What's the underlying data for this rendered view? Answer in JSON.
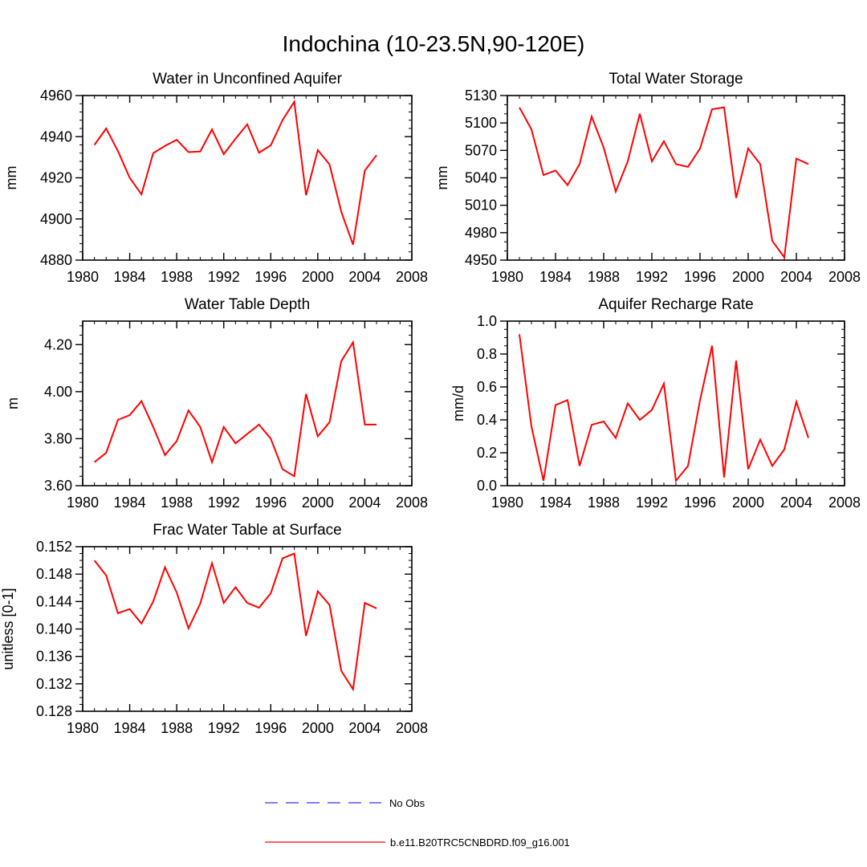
{
  "figure_title": "Indochina (10-23.5N,90-120E)",
  "colors": {
    "model_line": "#ff0000",
    "obs_line": "#0000ff",
    "axis": "#000000"
  },
  "legend": [
    {
      "label": "No Obs",
      "style": "dashed",
      "color": "#0000ff"
    },
    {
      "label": "b.e11.B20TRC5CNBDRD.f09_g16.001",
      "style": "solid",
      "color": "#ff0000"
    }
  ],
  "chart_data": [
    {
      "type": "line",
      "title": "Water in Unconfined Aquifer",
      "xlabel": "",
      "ylabel": "mm",
      "xlim": [
        1980,
        2008
      ],
      "ylim": [
        4880,
        4960
      ],
      "xticks": [
        1980,
        1984,
        1988,
        1992,
        1996,
        2000,
        2004,
        2008
      ],
      "yticks": [
        4880,
        4900,
        4920,
        4940,
        4960
      ],
      "ytick_labels": [
        "4880",
        "4900",
        "4920",
        "4940",
        "4960"
      ],
      "yminor_step": 4,
      "x": [
        1981,
        1982,
        1983,
        1984,
        1985,
        1986,
        1987,
        1988,
        1989,
        1990,
        1991,
        1992,
        1993,
        1994,
        1995,
        1996,
        1997,
        1998,
        1999,
        2000,
        2001,
        2002,
        2003,
        2004,
        2005
      ],
      "series": [
        {
          "name": "b.e11.B20TRC5CNBDRD.f09_g16.001",
          "values": [
            4936,
            4944,
            4933,
            4920,
            4912,
            4932,
            4935.5,
            4938.5,
            4932.5,
            4932.8,
            4943.5,
            4931.5,
            4939,
            4946,
            4932.2,
            4935.8,
            4948,
            4957,
            4911.5,
            4933.5,
            4926.5,
            4903.5,
            4887.5,
            4923.5,
            4931
          ]
        }
      ]
    },
    {
      "type": "line",
      "title": "Total Water Storage",
      "xlabel": "",
      "ylabel": "mm",
      "xlim": [
        1980,
        2008
      ],
      "ylim": [
        4950,
        5130
      ],
      "xticks": [
        1980,
        1984,
        1988,
        1992,
        1996,
        2000,
        2004,
        2008
      ],
      "yticks": [
        4950,
        4980,
        5010,
        5040,
        5070,
        5100,
        5130
      ],
      "ytick_labels": [
        "4950",
        "4980",
        "5010",
        "5040",
        "5070",
        "5100",
        "5130"
      ],
      "yminor_step": 10,
      "x": [
        1981,
        1982,
        1983,
        1984,
        1985,
        1986,
        1987,
        1988,
        1989,
        1990,
        1991,
        1992,
        1993,
        1994,
        1995,
        1996,
        1997,
        1998,
        1999,
        2000,
        2001,
        2002,
        2003,
        2004,
        2005
      ],
      "series": [
        {
          "name": "b.e11.B20TRC5CNBDRD.f09_g16.001",
          "values": [
            5117,
            5093,
            5043,
            5048,
            5032,
            5055,
            5107,
            5073,
            5025,
            5058,
            5110,
            5058,
            5080,
            5055,
            5052,
            5072,
            5115,
            5117,
            5018,
            5072,
            5055,
            4971,
            4953,
            5061,
            5055
          ]
        }
      ]
    },
    {
      "type": "line",
      "title": "Water Table Depth",
      "xlabel": "",
      "ylabel": "m",
      "xlim": [
        1980,
        2008
      ],
      "ylim": [
        3.6,
        4.3
      ],
      "xticks": [
        1980,
        1984,
        1988,
        1992,
        1996,
        2000,
        2004,
        2008
      ],
      "yticks": [
        3.6,
        3.8,
        4.0,
        4.2
      ],
      "ytick_labels": [
        "3.60",
        "3.80",
        "4.00",
        "4.20"
      ],
      "yminor_step": 0.04,
      "x": [
        1981,
        1982,
        1983,
        1984,
        1985,
        1986,
        1987,
        1988,
        1989,
        1990,
        1991,
        1992,
        1993,
        1994,
        1995,
        1996,
        1997,
        1998,
        1999,
        2000,
        2001,
        2002,
        2003,
        2004,
        2005
      ],
      "series": [
        {
          "name": "b.e11.B20TRC5CNBDRD.f09_g16.001",
          "values": [
            3.7,
            3.74,
            3.88,
            3.9,
            3.96,
            3.85,
            3.73,
            3.79,
            3.92,
            3.85,
            3.7,
            3.85,
            3.78,
            3.82,
            3.86,
            3.8,
            3.67,
            3.64,
            3.99,
            3.81,
            3.87,
            4.13,
            4.21,
            3.86,
            3.86
          ]
        }
      ]
    },
    {
      "type": "line",
      "title": "Aquifer Recharge Rate",
      "xlabel": "",
      "ylabel": "mm/d",
      "xlim": [
        1980,
        2008
      ],
      "ylim": [
        0,
        1.0
      ],
      "xticks": [
        1980,
        1984,
        1988,
        1992,
        1996,
        2000,
        2004,
        2008
      ],
      "yticks": [
        0,
        0.2,
        0.4,
        0.6,
        0.8,
        1.0
      ],
      "ytick_labels": [
        "0.0",
        "0.2",
        "0.4",
        "0.6",
        "0.8",
        "1.0"
      ],
      "yminor_step": 0.05,
      "x": [
        1981,
        1982,
        1983,
        1984,
        1985,
        1986,
        1987,
        1988,
        1989,
        1990,
        1991,
        1992,
        1993,
        1994,
        1995,
        1996,
        1997,
        1998,
        1999,
        2000,
        2001,
        2002,
        2003,
        2004,
        2005
      ],
      "series": [
        {
          "name": "b.e11.B20TRC5CNBDRD.f09_g16.001",
          "values": [
            0.92,
            0.36,
            0.03,
            0.49,
            0.52,
            0.12,
            0.37,
            0.39,
            0.29,
            0.5,
            0.4,
            0.46,
            0.62,
            0.03,
            0.12,
            0.52,
            0.85,
            0.05,
            0.76,
            0.1,
            0.28,
            0.12,
            0.22,
            0.51,
            0.29
          ]
        }
      ]
    },
    {
      "type": "line",
      "title": "Frac Water Table at Surface",
      "xlabel": "",
      "ylabel": "unitless [0-1]",
      "xlim": [
        1980,
        2008
      ],
      "ylim": [
        0.128,
        0.152
      ],
      "xticks": [
        1980,
        1984,
        1988,
        1992,
        1996,
        2000,
        2004,
        2008
      ],
      "yticks": [
        0.128,
        0.132,
        0.136,
        0.14,
        0.144,
        0.148,
        0.152
      ],
      "ytick_labels": [
        "0.128",
        "0.132",
        "0.136",
        "0.140",
        "0.144",
        "0.148",
        "0.152"
      ],
      "yminor_step": 0.001,
      "x": [
        1981,
        1982,
        1983,
        1984,
        1985,
        1986,
        1987,
        1988,
        1989,
        1990,
        1991,
        1992,
        1993,
        1994,
        1995,
        1996,
        1997,
        1998,
        1999,
        2000,
        2001,
        2002,
        2003,
        2004,
        2005
      ],
      "series": [
        {
          "name": "b.e11.B20TRC5CNBDRD.f09_g16.001",
          "values": [
            0.15,
            0.1478,
            0.1423,
            0.1429,
            0.1408,
            0.144,
            0.149,
            0.1453,
            0.1401,
            0.1437,
            0.1496,
            0.1438,
            0.1461,
            0.1438,
            0.1431,
            0.1452,
            0.1503,
            0.151,
            0.139,
            0.1455,
            0.1435,
            0.1339,
            0.1312,
            0.1438,
            0.143
          ]
        }
      ]
    }
  ]
}
